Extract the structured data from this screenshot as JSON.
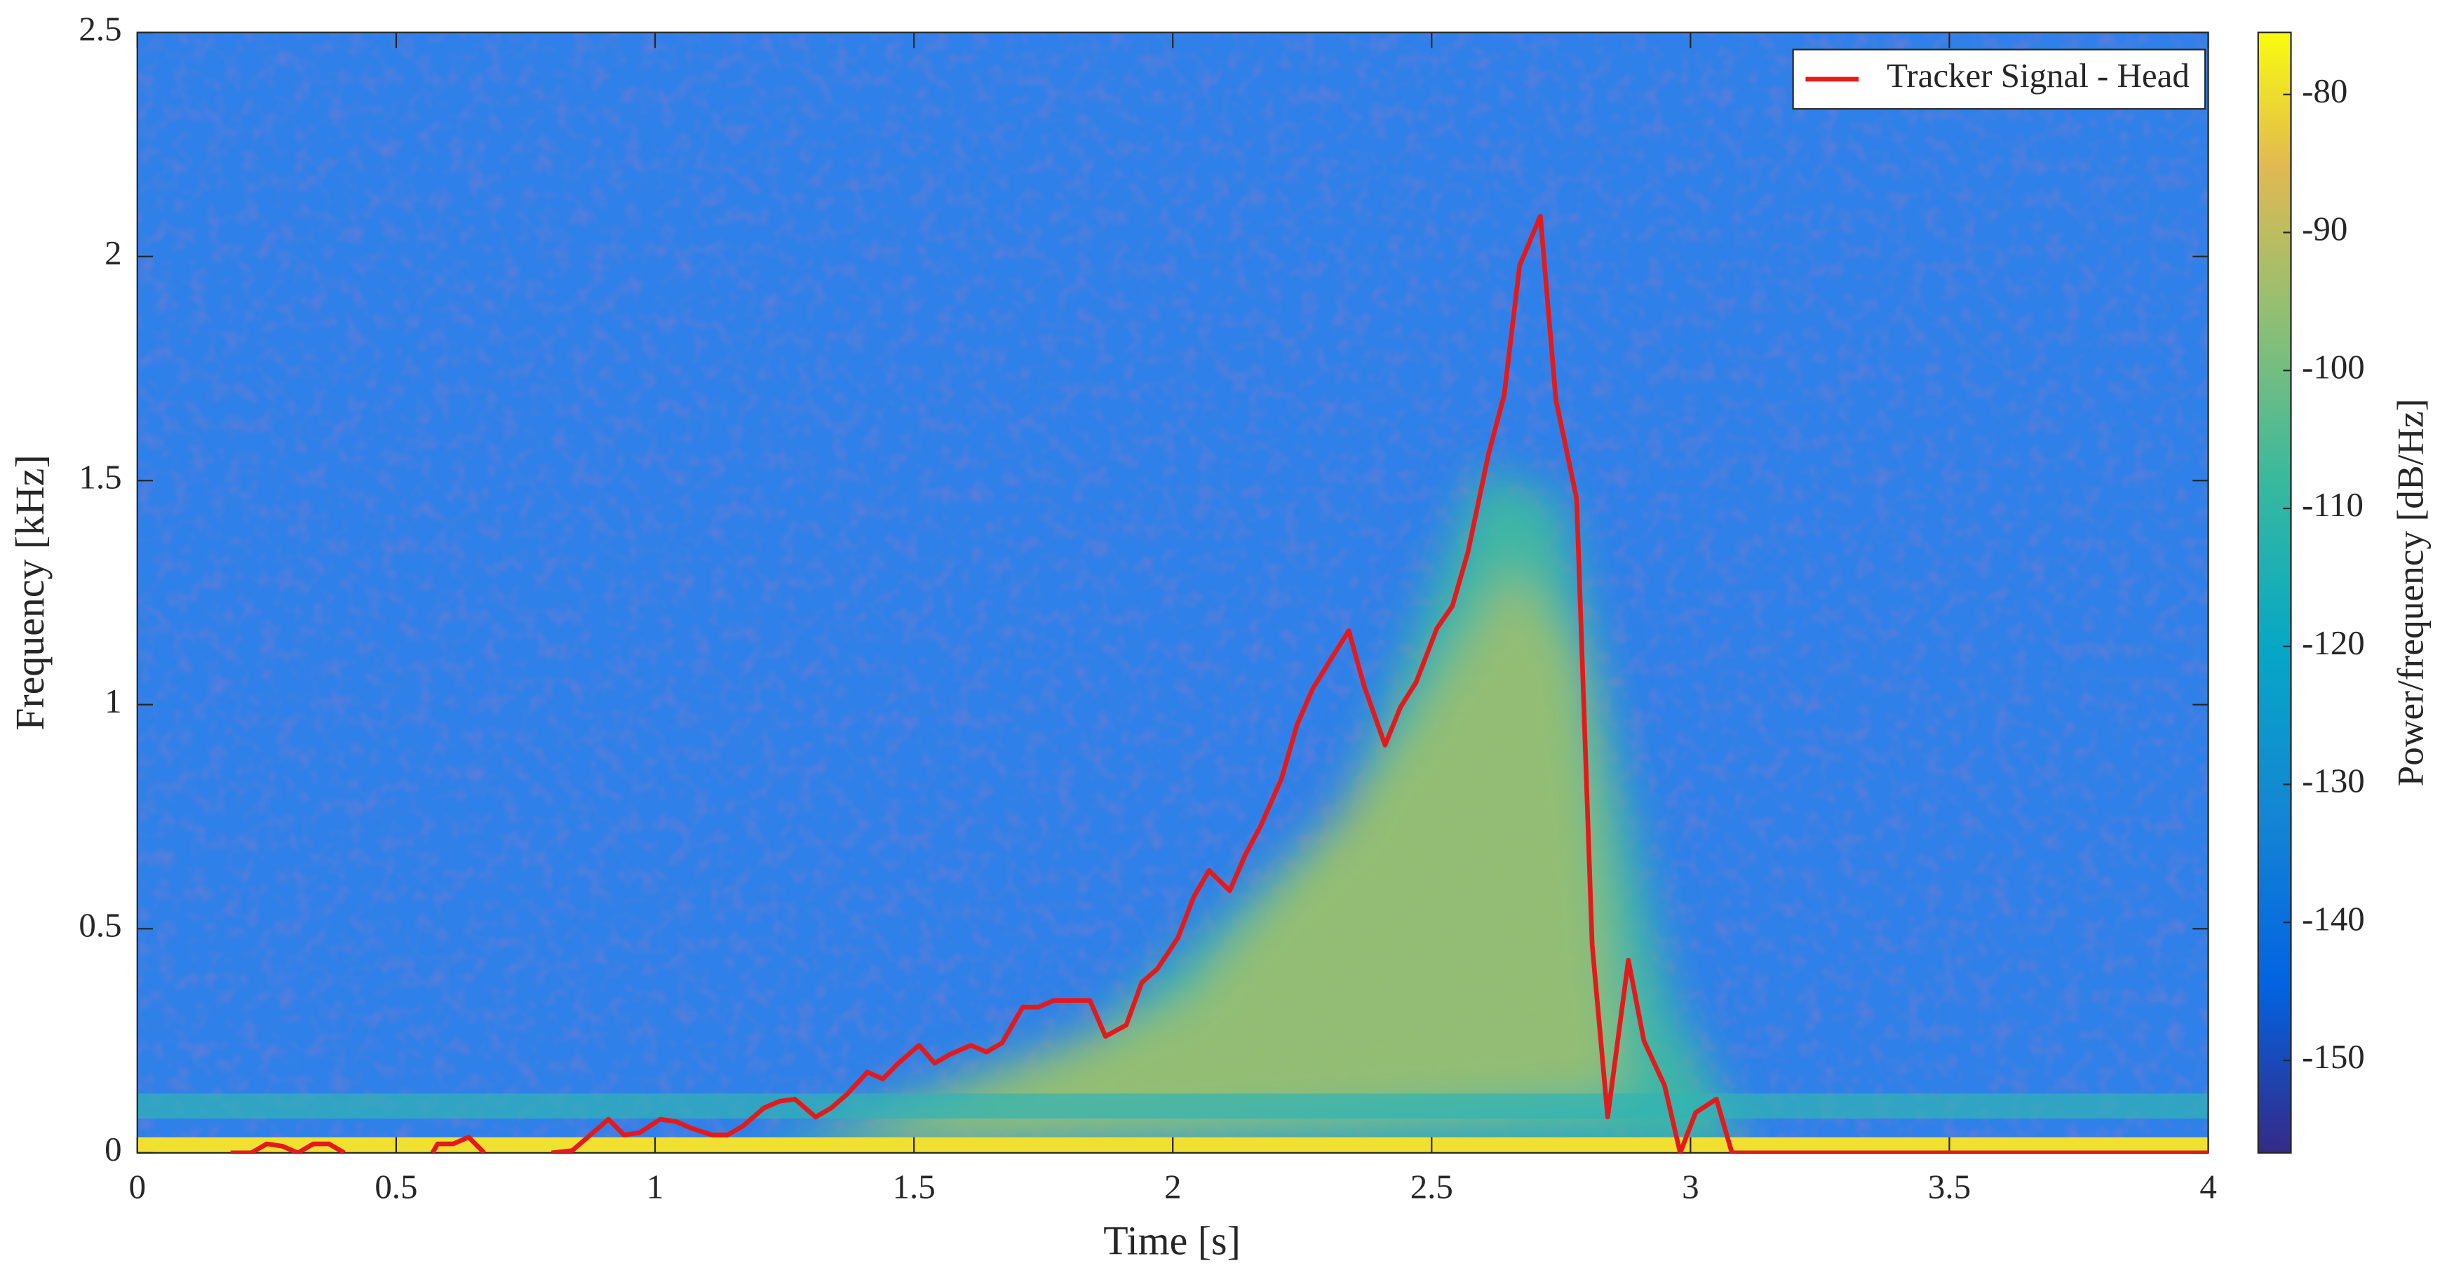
{
  "chart_data": {
    "type": "line",
    "xlabel": "Time [s]",
    "ylabel": "Frequency [kHz]",
    "xlim": [
      0,
      4
    ],
    "xticks": [
      0,
      0.5,
      1,
      1.5,
      2,
      2.5,
      3,
      3.5,
      4
    ],
    "ylim": [
      0,
      2.5
    ],
    "yticks": [
      0,
      0.5,
      1,
      1.5,
      2,
      2.5
    ],
    "legend": "northeast",
    "x": [
      0.18,
      0.22,
      0.25,
      0.28,
      0.31,
      0.34,
      0.37,
      0.4,
      0.47,
      0.57,
      0.58,
      0.61,
      0.64,
      0.67,
      0.71,
      0.74,
      0.77,
      0.8,
      0.84,
      0.88,
      0.91,
      0.94,
      0.97,
      1.01,
      1.04,
      1.07,
      1.11,
      1.14,
      1.17,
      1.21,
      1.24,
      1.27,
      1.31,
      1.34,
      1.37,
      1.41,
      1.44,
      1.47,
      1.51,
      1.54,
      1.57,
      1.61,
      1.64,
      1.67,
      1.71,
      1.74,
      1.77,
      1.81,
      1.84,
      1.87,
      1.91,
      1.94,
      1.97,
      2.01,
      2.04,
      2.07,
      2.11,
      2.14,
      2.17,
      2.21,
      2.24,
      2.27,
      2.31,
      2.34,
      2.37,
      2.41,
      2.44,
      2.47,
      2.51,
      2.54,
      2.57,
      2.61,
      2.64,
      2.67,
      2.71,
      2.74,
      2.78,
      2.81,
      2.84,
      2.88,
      2.91,
      2.95,
      2.98,
      3.01,
      3.05,
      3.08,
      4
    ],
    "series": [
      {
        "name": "Tracker Signal - Head",
        "color": "#e31a1c",
        "values": [
          0,
          0,
          0.02,
          0.015,
          0,
          0.02,
          0.02,
          0,
          null,
          0,
          0.02,
          0.02,
          0.035,
          0,
          null,
          0,
          null,
          0,
          0.005,
          0.045,
          0.075,
          0.04,
          0.045,
          0.075,
          0.07,
          0.055,
          0.04,
          0.04,
          0.06,
          0.1,
          0.115,
          0.12,
          0.08,
          0.1,
          0.13,
          0.18,
          0.165,
          0.2,
          0.24,
          0.2,
          0.22,
          0.24,
          0.225,
          0.245,
          0.325,
          0.325,
          0.34,
          0.34,
          0.34,
          0.26,
          0.285,
          0.38,
          0.41,
          0.48,
          0.57,
          0.63,
          0.585,
          0.665,
          0.73,
          0.835,
          0.955,
          1.035,
          1.11,
          1.165,
          1.04,
          0.91,
          0.995,
          1.05,
          1.17,
          1.22,
          1.34,
          1.56,
          1.69,
          1.98,
          2.09,
          1.68,
          1.46,
          0.465,
          0.08,
          0.43,
          0.25,
          0.15,
          0,
          0.09,
          0.12,
          0,
          0
        ]
      }
    ],
    "colorbar": {
      "label": "Power/frequency [dB/Hz]",
      "clim": [
        -156.7,
        -75.5
      ],
      "ticks": [
        -150,
        -140,
        -130,
        -120,
        -110,
        -100,
        -90,
        -80
      ]
    }
  }
}
